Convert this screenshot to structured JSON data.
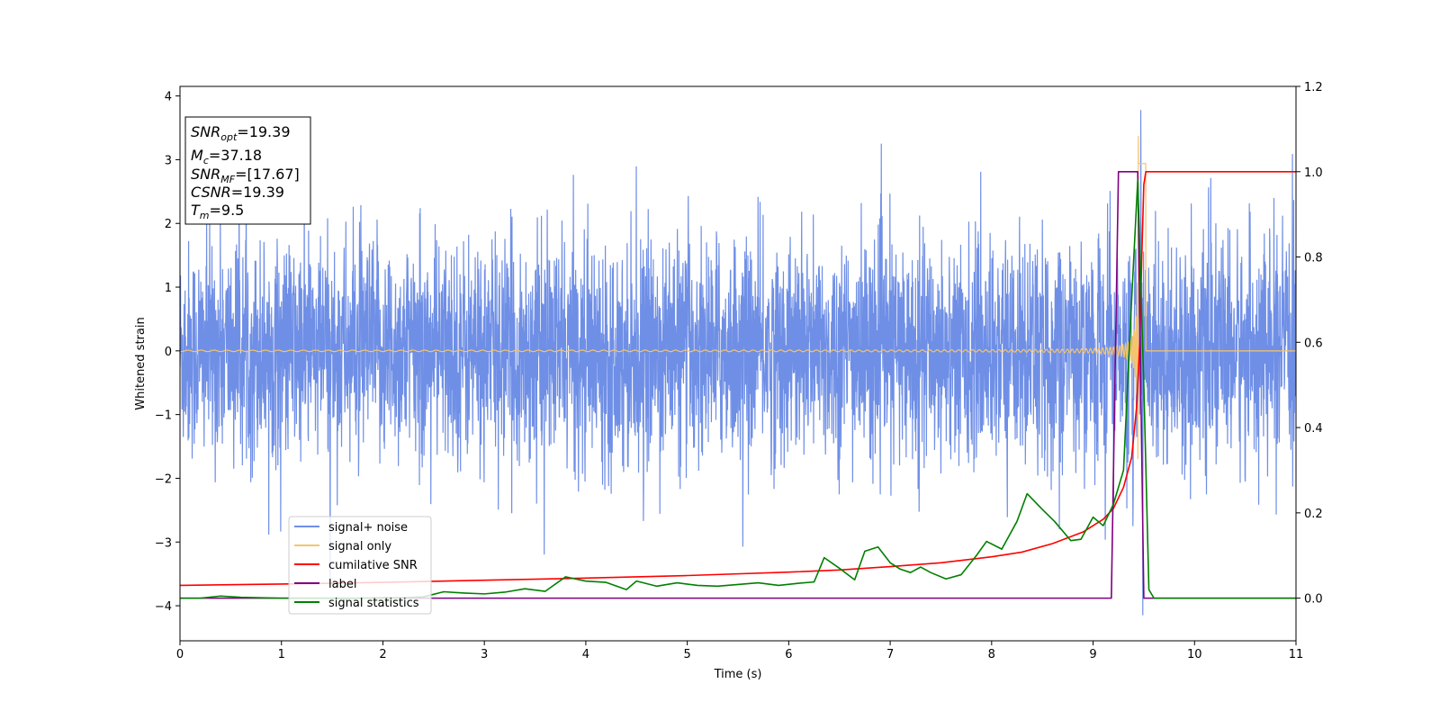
{
  "chart_data": {
    "type": "line",
    "xlabel": "Time (s)",
    "ylabel": "Whitened strain",
    "xlim": [
      0,
      11
    ],
    "ylim": [
      -4.55,
      4.15
    ],
    "y2lim": [
      -0.1,
      1.2
    ],
    "x_ticks": [
      0,
      1,
      2,
      3,
      4,
      5,
      6,
      7,
      8,
      9,
      10,
      11
    ],
    "x_tick_labels": [
      "0",
      "1",
      "2",
      "3",
      "4",
      "5",
      "6",
      "7",
      "8",
      "9",
      "10",
      "11"
    ],
    "y_ticks": [
      4,
      3,
      2,
      1,
      0,
      -1,
      -2,
      -3,
      -4
    ],
    "y_tick_labels": [
      "4",
      "3",
      "2",
      "1",
      "0",
      "−1",
      "−2",
      "−3",
      "−4"
    ],
    "y2_ticks": [
      1.2,
      1.0,
      0.8,
      0.6,
      0.4,
      0.2,
      0.0
    ],
    "y2_tick_labels": [
      "1.2",
      "1.0",
      "0.8",
      "0.6",
      "0.4",
      "0.2",
      "0.0"
    ],
    "grid": false,
    "legend_position": "lower-left",
    "annotation": {
      "lines": [
        {
          "base": "SNR",
          "sub": "opt",
          "value": "=19.39"
        },
        {
          "base": "M",
          "sub": "c",
          "value": "=37.18"
        },
        {
          "base": "SNR",
          "sub": "MF",
          "value": "=[17.67]"
        },
        {
          "base": "CSNR",
          "sub": "",
          "value": "=19.39"
        },
        {
          "base": "T",
          "sub": "m",
          "value": "=9.5"
        }
      ]
    },
    "series": [
      {
        "name": "signal+ noise",
        "axis": "left",
        "color": "#6f8fe6",
        "style": "noise-band",
        "sigma": 0.85,
        "chirp_peak_x": 9.45,
        "peak_value": 3.78,
        "min_value": -4.15
      },
      {
        "name": "signal only",
        "axis": "left",
        "color": "#f5c46e",
        "style": "chirp",
        "amplitude_start": 0.01,
        "amplitude_peak": 3.5,
        "peak_x": 9.45,
        "end_x": 9.52
      },
      {
        "name": "cumilative SNR",
        "axis": "right",
        "color": "#ff0000",
        "points": [
          [
            0,
            0.03
          ],
          [
            1,
            0.033
          ],
          [
            2,
            0.037
          ],
          [
            3,
            0.042
          ],
          [
            4,
            0.047
          ],
          [
            5,
            0.053
          ],
          [
            6,
            0.061
          ],
          [
            6.5,
            0.066
          ],
          [
            7,
            0.074
          ],
          [
            7.5,
            0.083
          ],
          [
            8,
            0.097
          ],
          [
            8.3,
            0.108
          ],
          [
            8.6,
            0.128
          ],
          [
            8.9,
            0.155
          ],
          [
            9.1,
            0.185
          ],
          [
            9.2,
            0.21
          ],
          [
            9.3,
            0.26
          ],
          [
            9.38,
            0.33
          ],
          [
            9.43,
            0.45
          ],
          [
            9.46,
            0.6
          ],
          [
            9.48,
            0.8
          ],
          [
            9.5,
            0.97
          ],
          [
            9.52,
            1.0
          ],
          [
            11,
            1.0
          ]
        ]
      },
      {
        "name": "label",
        "axis": "right",
        "color": "#800080",
        "points": [
          [
            0,
            0
          ],
          [
            9.18,
            0
          ],
          [
            9.25,
            1.0
          ],
          [
            9.44,
            1.0
          ],
          [
            9.5,
            0
          ],
          [
            11,
            0
          ]
        ]
      },
      {
        "name": "signal statistics",
        "axis": "right",
        "color": "#008000",
        "points": [
          [
            0,
            0
          ],
          [
            0.2,
            0.0
          ],
          [
            0.4,
            0.005
          ],
          [
            0.6,
            0.002
          ],
          [
            0.8,
            0.001
          ],
          [
            1,
            0.0
          ],
          [
            1.2,
            0.0
          ],
          [
            1.4,
            0.0
          ],
          [
            1.6,
            -0.001
          ],
          [
            1.8,
            0.0
          ],
          [
            2,
            0.001
          ],
          [
            2.2,
            0.001
          ],
          [
            2.4,
            0.003
          ],
          [
            2.6,
            0.015
          ],
          [
            2.8,
            0.012
          ],
          [
            3,
            0.01
          ],
          [
            3.2,
            0.014
          ],
          [
            3.4,
            0.022
          ],
          [
            3.6,
            0.016
          ],
          [
            3.8,
            0.05
          ],
          [
            4,
            0.04
          ],
          [
            4.2,
            0.037
          ],
          [
            4.4,
            0.02
          ],
          [
            4.5,
            0.04
          ],
          [
            4.7,
            0.028
          ],
          [
            4.9,
            0.036
          ],
          [
            5.1,
            0.03
          ],
          [
            5.3,
            0.028
          ],
          [
            5.5,
            0.032
          ],
          [
            5.7,
            0.036
          ],
          [
            5.9,
            0.03
          ],
          [
            6.1,
            0.035
          ],
          [
            6.25,
            0.038
          ],
          [
            6.35,
            0.095
          ],
          [
            6.5,
            0.07
          ],
          [
            6.65,
            0.043
          ],
          [
            6.75,
            0.11
          ],
          [
            6.88,
            0.12
          ],
          [
            7.0,
            0.083
          ],
          [
            7.1,
            0.068
          ],
          [
            7.2,
            0.06
          ],
          [
            7.3,
            0.073
          ],
          [
            7.4,
            0.06
          ],
          [
            7.55,
            0.045
          ],
          [
            7.7,
            0.055
          ],
          [
            7.85,
            0.1
          ],
          [
            7.95,
            0.133
          ],
          [
            8.1,
            0.115
          ],
          [
            8.25,
            0.18
          ],
          [
            8.35,
            0.245
          ],
          [
            8.5,
            0.208
          ],
          [
            8.62,
            0.18
          ],
          [
            8.78,
            0.135
          ],
          [
            8.88,
            0.138
          ],
          [
            9.0,
            0.19
          ],
          [
            9.1,
            0.17
          ],
          [
            9.2,
            0.22
          ],
          [
            9.3,
            0.3
          ],
          [
            9.38,
            0.7
          ],
          [
            9.44,
            0.98
          ],
          [
            9.5,
            0.5
          ],
          [
            9.55,
            0.02
          ],
          [
            9.6,
            0.0
          ],
          [
            11,
            0.0
          ]
        ]
      }
    ]
  },
  "legend": {
    "items": [
      {
        "label": "signal+ noise",
        "color": "#6f8fe6"
      },
      {
        "label": "signal only",
        "color": "#f5c46e"
      },
      {
        "label": "cumilative SNR",
        "color": "#ff0000"
      },
      {
        "label": "label",
        "color": "#800080"
      },
      {
        "label": "signal statistics",
        "color": "#008000"
      }
    ]
  }
}
